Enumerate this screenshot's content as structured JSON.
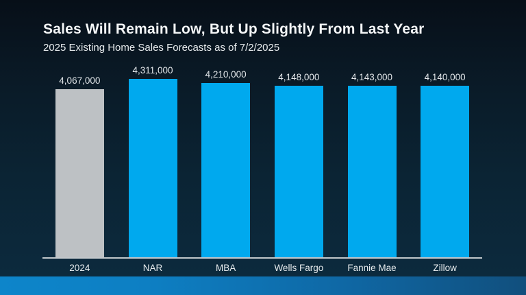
{
  "slide": {
    "title": "Sales Will Remain Low, But Up Slightly From Last Year",
    "subtitle": "2025 Existing Home Sales Forecasts as of 7/2/2025"
  },
  "chart_data": {
    "type": "bar",
    "title": "Sales Will Remain Low, But Up Slightly From Last Year",
    "subtitle": "2025 Existing Home Sales Forecasts as of 7/2/2025",
    "categories": [
      "2024",
      "NAR",
      "MBA",
      "Wells Fargo",
      "Fannie Mae",
      "Zillow"
    ],
    "values": [
      4067000,
      4311000,
      4210000,
      4148000,
      4143000,
      4140000
    ],
    "value_labels": [
      "4,067,000",
      "4,311,000",
      "4,210,000",
      "4,148,000",
      "4,143,000",
      "4,140,000"
    ],
    "bar_colors": [
      "#bdc1c4",
      "#00a9ee",
      "#00a9ee",
      "#00a9ee",
      "#00a9ee",
      "#00a9ee"
    ],
    "xlabel": "",
    "ylabel": "",
    "ylim": [
      0,
      4311000
    ],
    "grid": false,
    "legend": false,
    "y_axis_visible": false,
    "data_labels_position": "above-bar"
  },
  "colors": {
    "highlight_bar_blue": "#00a9ee",
    "prior_year_bar_gray": "#bdc1c4",
    "axis_line": "#c3c8cc",
    "text": "#f4f6f7",
    "accent_strip_left": "#0d85ca",
    "accent_strip_right": "#114f7d"
  }
}
